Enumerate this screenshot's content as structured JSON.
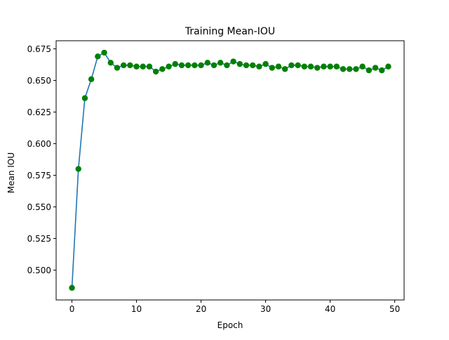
{
  "chart_data": {
    "type": "line",
    "title": "Training Mean-IOU",
    "xlabel": "Epoch",
    "ylabel": "Mean IOU",
    "xlim": [
      -2.45,
      51.45
    ],
    "ylim": [
      0.4764,
      0.6814
    ],
    "xticks": [
      0,
      10,
      20,
      30,
      40,
      50
    ],
    "xtick_labels": [
      "0",
      "10",
      "20",
      "30",
      "40",
      "50"
    ],
    "yticks": [
      0.5,
      0.525,
      0.55,
      0.575,
      0.6,
      0.625,
      0.65,
      0.675
    ],
    "ytick_labels": [
      "0.500",
      "0.525",
      "0.550",
      "0.575",
      "0.600",
      "0.625",
      "0.650",
      "0.675"
    ],
    "grid": false,
    "series": [
      {
        "x": [
          0,
          1,
          2,
          3,
          4,
          5,
          6,
          7,
          8,
          9,
          10,
          11,
          12,
          13,
          14,
          15,
          16,
          17,
          18,
          19,
          20,
          21,
          22,
          23,
          24,
          25,
          26,
          27,
          28,
          29,
          30,
          31,
          32,
          33,
          34,
          35,
          36,
          37,
          38,
          39,
          40,
          41,
          42,
          43,
          44,
          45,
          46,
          47,
          48,
          49
        ],
        "values": [
          0.486,
          0.58,
          0.636,
          0.651,
          0.669,
          0.672,
          0.664,
          0.66,
          0.662,
          0.662,
          0.661,
          0.661,
          0.661,
          0.657,
          0.659,
          0.661,
          0.663,
          0.662,
          0.662,
          0.662,
          0.662,
          0.664,
          0.662,
          0.664,
          0.662,
          0.665,
          0.663,
          0.662,
          0.662,
          0.661,
          0.663,
          0.66,
          0.661,
          0.659,
          0.662,
          0.662,
          0.661,
          0.661,
          0.66,
          0.661,
          0.661,
          0.661,
          0.659,
          0.659,
          0.659,
          0.661,
          0.658,
          0.66,
          0.658,
          0.661
        ],
        "line_color": "#1f77b4",
        "marker_color": "#008000"
      }
    ]
  }
}
